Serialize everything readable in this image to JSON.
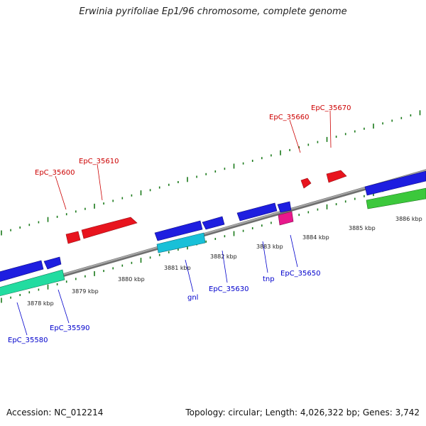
{
  "title": "Erwinia pyrifoliae Ep1/96 chromosome, complete genome",
  "footer": {
    "accession": "Accession: NC_012214",
    "summary": "Topology: circular; Length: 4,026,322 bp; Genes: 3,742"
  },
  "colors": {
    "backbone": "#8c8c8c",
    "tick": "#1a7a1a",
    "forward_label": "#cc0000",
    "reverse_label": "#0000cc",
    "forward_gene": "#e8141e",
    "reverse_gene": "#1e1ee0",
    "cyan_feature": "#18c0d8",
    "green_feature": "#3cc83c",
    "teal_feature": "#22dca0",
    "magenta_feature": "#e8188c"
  },
  "scale_labels": [
    "3878 kbp",
    "3879 kbp",
    "3880 kbp",
    "3881 kbp",
    "3882 kbp",
    "3883 kbp",
    "3884 kbp",
    "3885 kbp",
    "3886 kbp"
  ],
  "forward_gene_labels": [
    "EpC_35600",
    "EpC_35610",
    "EpC_35660",
    "EpC_35670"
  ],
  "reverse_gene_labels": [
    "EpC_35580",
    "EpC_35590",
    "gnl",
    "EpC_35630",
    "tnp",
    "EpC_35650"
  ]
}
